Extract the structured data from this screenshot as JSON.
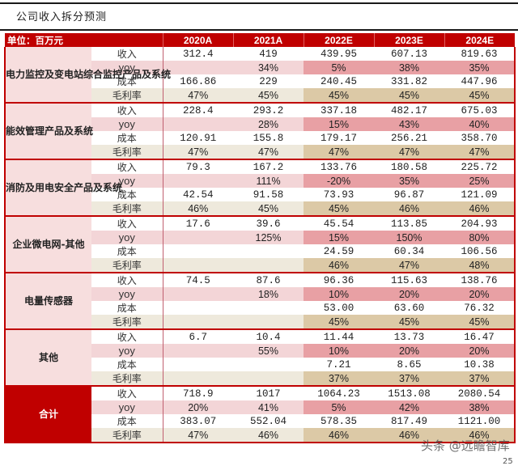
{
  "title": "公司收入拆分预测",
  "header": {
    "unit_label": "单位：百万元",
    "years": [
      "2020A",
      "2021A",
      "2022E",
      "2023E",
      "2024E"
    ]
  },
  "metrics": [
    "收入",
    "yoy",
    "成本",
    "毛利率"
  ],
  "segments": [
    {
      "name": "电力监控及变电站综合监控产品及系统",
      "revenue": [
        "312.4",
        "419",
        "439.95",
        "607.13",
        "819.63"
      ],
      "yoy": [
        "",
        "34%",
        "5%",
        "38%",
        "35%"
      ],
      "cost": [
        "166.86",
        "229",
        "240.45",
        "331.82",
        "447.96"
      ],
      "gross_margin": [
        "47%",
        "45%",
        "45%",
        "45%",
        "45%"
      ]
    },
    {
      "name": "能效管理产品及系统",
      "revenue": [
        "228.4",
        "293.2",
        "337.18",
        "482.17",
        "675.03"
      ],
      "yoy": [
        "",
        "28%",
        "15%",
        "43%",
        "40%"
      ],
      "cost": [
        "120.91",
        "155.8",
        "179.17",
        "256.21",
        "358.70"
      ],
      "gross_margin": [
        "47%",
        "47%",
        "47%",
        "47%",
        "47%"
      ]
    },
    {
      "name": "消防及用电安全产品及系统",
      "revenue": [
        "79.3",
        "167.2",
        "133.76",
        "180.58",
        "225.72"
      ],
      "yoy": [
        "",
        "111%",
        "-20%",
        "35%",
        "25%"
      ],
      "cost": [
        "42.54",
        "91.58",
        "73.93",
        "96.87",
        "121.09"
      ],
      "gross_margin": [
        "46%",
        "45%",
        "45%",
        "46%",
        "46%"
      ]
    },
    {
      "name": "企业微电网-其他",
      "revenue": [
        "17.6",
        "39.6",
        "45.54",
        "113.85",
        "204.93"
      ],
      "yoy": [
        "",
        "125%",
        "15%",
        "150%",
        "80%"
      ],
      "cost": [
        "",
        "",
        "24.59",
        "60.34",
        "106.56"
      ],
      "gross_margin": [
        "",
        "",
        "46%",
        "47%",
        "48%"
      ]
    },
    {
      "name": "电量传感器",
      "revenue": [
        "74.5",
        "87.6",
        "96.36",
        "115.63",
        "138.76"
      ],
      "yoy": [
        "",
        "18%",
        "10%",
        "20%",
        "20%"
      ],
      "cost": [
        "",
        "",
        "53.00",
        "63.60",
        "76.32"
      ],
      "gross_margin": [
        "",
        "",
        "45%",
        "45%",
        "45%"
      ]
    },
    {
      "name": "其他",
      "revenue": [
        "6.7",
        "10.4",
        "11.44",
        "13.73",
        "16.47"
      ],
      "yoy": [
        "",
        "55%",
        "10%",
        "20%",
        "20%"
      ],
      "cost": [
        "",
        "",
        "7.21",
        "8.65",
        "10.38"
      ],
      "gross_margin": [
        "",
        "",
        "37%",
        "37%",
        "37%"
      ]
    },
    {
      "name": "合计",
      "revenue": [
        "718.9",
        "1017",
        "1064.23",
        "1513.08",
        "2080.54"
      ],
      "yoy": [
        "20%",
        "41%",
        "5%",
        "42%",
        "38%"
      ],
      "cost": [
        "383.07",
        "552.04",
        "578.35",
        "817.49",
        "1121.00"
      ],
      "gross_margin": [
        "47%",
        "46%",
        "46%",
        "46%",
        "46%"
      ]
    }
  ],
  "watermark": "头条 @远瞻智库",
  "page_number": "25"
}
